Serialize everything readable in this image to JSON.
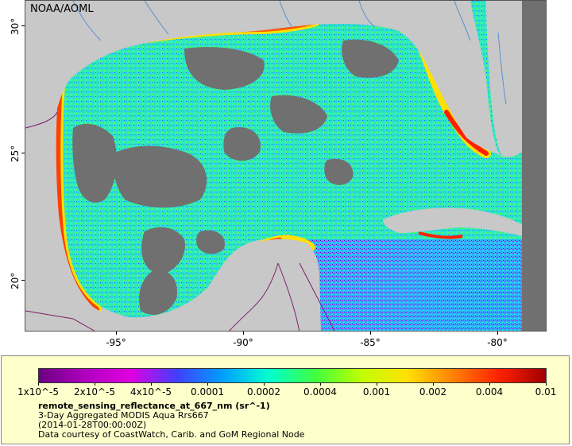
{
  "map": {
    "agency": "NOAA/AOML",
    "lat_ticks": [
      "30°",
      "25°",
      "20°"
    ],
    "lat_values": [
      30,
      25,
      20
    ],
    "lon_ticks": [
      "-95°",
      "-90°",
      "-85°",
      "-80°"
    ],
    "lon_values": [
      -95,
      -90,
      -85,
      -80
    ],
    "lon_range": [
      -98,
      -79
    ],
    "lat_range": [
      18,
      31
    ],
    "colors": {
      "land": "#c8c8c8",
      "no_data": "#707070",
      "border": "#7b1f6a",
      "river": "#5a8fd0"
    }
  },
  "legend": {
    "ticks": [
      "1x10^-5",
      "2x10^-5",
      "4x10^-5",
      "0.0001",
      "0.0002",
      "0.0004",
      "0.001",
      "0.002",
      "0.004",
      "0.01"
    ],
    "colormap": [
      "#6a0080",
      "#b000c0",
      "#e000e0",
      "#4040ff",
      "#00a0ff",
      "#00ffd0",
      "#40ff40",
      "#c0ff00",
      "#ffe000",
      "#ff8000",
      "#ff2000",
      "#a00000"
    ],
    "variable": "remote_sensing_reflectance_at_667_nm (sr^-1)",
    "line1": "3-Day Aggregated MODIS Aqua Rrs667",
    "line2": "(2014-01-28T00:00:00Z)",
    "line3": "Data courtesy of CoastWatch, Carib. and GoM Regional Node"
  }
}
